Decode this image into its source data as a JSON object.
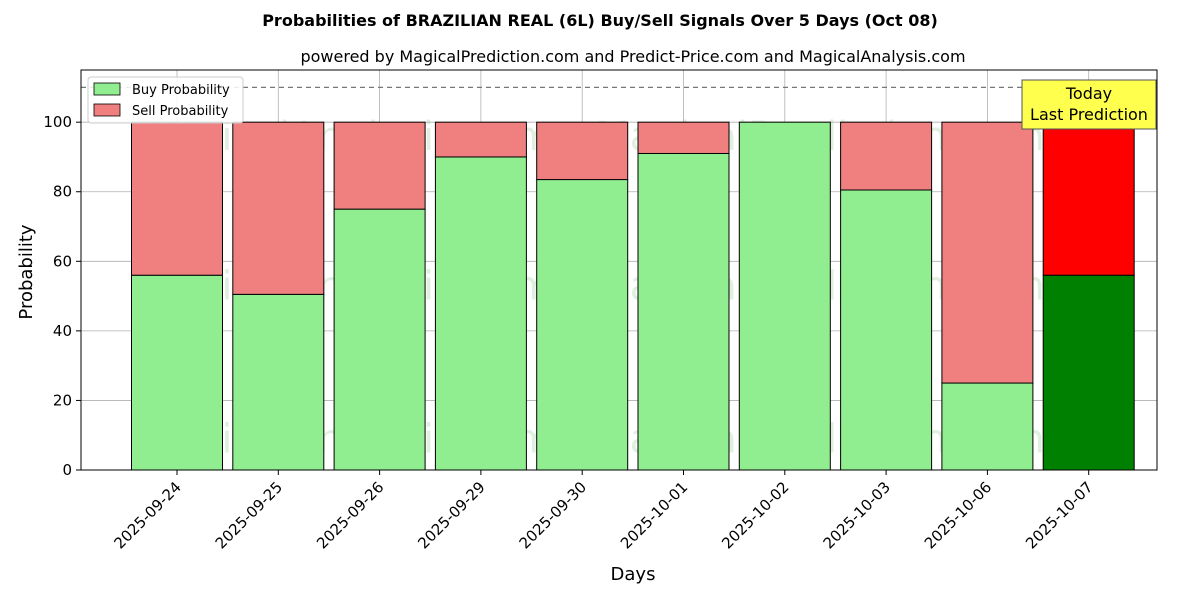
{
  "chart_data": {
    "type": "bar",
    "stacked": true,
    "title": "Probabilities of BRAZILIAN REAL (6L) Buy/Sell Signals Over 5 Days (Oct 08)",
    "subtitle": "powered by MagicalPrediction.com and Predict-Price.com and MagicalAnalysis.com",
    "xlabel": "Days",
    "ylabel": "Probability",
    "ylim": [
      0,
      115
    ],
    "yticks": [
      0,
      20,
      40,
      60,
      80,
      100
    ],
    "grid": true,
    "legend_position": "top-left",
    "reference_line": 110,
    "categories": [
      "2025-09-24",
      "2025-09-25",
      "2025-09-26",
      "2025-09-29",
      "2025-09-30",
      "2025-10-01",
      "2025-10-02",
      "2025-10-03",
      "2025-10-06",
      "2025-10-07"
    ],
    "series": [
      {
        "name": "Buy Probability",
        "color": "#90ee90",
        "values": [
          56,
          50.5,
          75,
          90,
          83.5,
          91,
          100,
          80.5,
          25,
          56
        ]
      },
      {
        "name": "Sell Probability",
        "color": "#f08080",
        "values": [
          44,
          49.5,
          25,
          10,
          16.5,
          9,
          0,
          19.5,
          75,
          44
        ]
      }
    ],
    "highlight": {
      "index": 9,
      "buy_color": "#008000",
      "sell_color": "#ff0000"
    },
    "annotation": {
      "lines": [
        "Today",
        "Last Prediction"
      ],
      "background": "#ffff4d"
    },
    "watermarks": [
      "MagicalAnalysis.com",
      "MagicalPrediction.com"
    ]
  }
}
